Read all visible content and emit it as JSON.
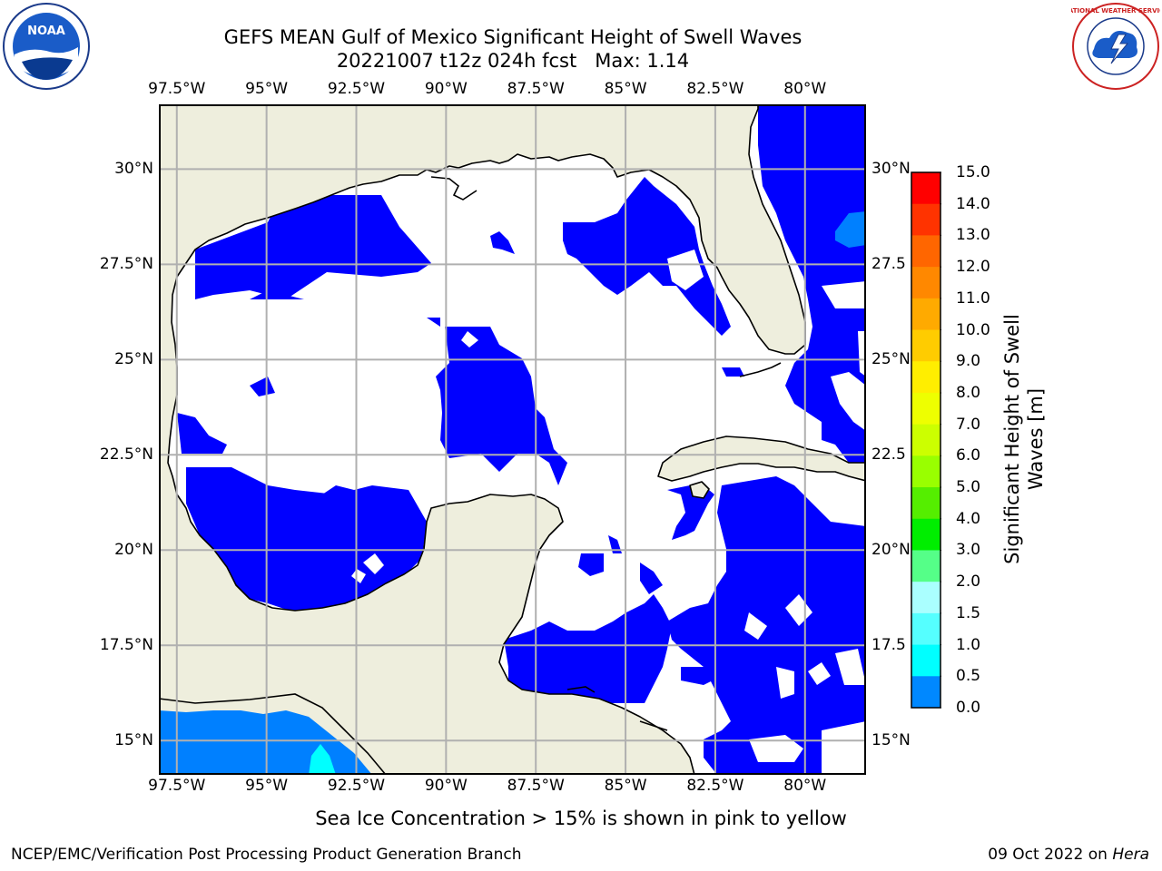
{
  "title_line1": "GEFS MEAN Gulf of Mexico Significant Height of Swell Waves",
  "title_line2": "20221007 t12z 024h fcst   Max: 1.14",
  "lon_labels": [
    "97.5°W",
    "95°W",
    "92.5°W",
    "90°W",
    "87.5°W",
    "85°W",
    "82.5°W",
    "80°W"
  ],
  "lat_labels": [
    "30°N",
    "27.5°N",
    "25°N",
    "22.5°N",
    "20°N",
    "17.5°N",
    "15°N"
  ],
  "lat_labels_right": [
    "30°N",
    "27.5",
    "25°N",
    "22.5",
    "20°N",
    "17.5",
    "15°N"
  ],
  "colorbar": {
    "ticks": [
      "15.0",
      "14.0",
      "13.0",
      "12.0",
      "11.0",
      "10.0",
      "9.0",
      "8.0",
      "7.0",
      "6.0",
      "5.0",
      "4.0",
      "3.0",
      "2.0",
      "1.5",
      "1.0",
      "0.5",
      "0.0"
    ],
    "colors": [
      "#ff0000",
      "#ff3300",
      "#ff6600",
      "#ff8800",
      "#ffaa00",
      "#ffcc00",
      "#ffee00",
      "#eeff00",
      "#ccff00",
      "#99ff00",
      "#55ee00",
      "#00ee00",
      "#55ff88",
      "#aaffff",
      "#55ffff",
      "#00ffff",
      "#0088ff",
      "#0000ff"
    ],
    "label": "Significant Height of Swell Waves [m]"
  },
  "colors": {
    "land": "#eeeedd",
    "swell_low": "#0000ff",
    "swell_mid": "#0080ff",
    "swell_cyan": "#00ffff",
    "ocean_zero": "#ffffff",
    "grid": "#b0b0b0"
  },
  "note": "Sea Ice Concentration > 15% is shown in pink to yellow",
  "footer_left": "NCEP/EMC/Verification Post Processing Product Generation Branch",
  "footer_date": "09 Oct 2022 on ",
  "footer_host": "Hera",
  "logos": {
    "left": {
      "icon": "noaa-logo",
      "text": "NOAA"
    },
    "right": {
      "icon": "nws-logo",
      "text": "NATIONAL WEATHER SERVICE"
    }
  },
  "map_extent": {
    "lon": [
      -98,
      -78.3
    ],
    "lat": [
      14.1,
      31.7
    ]
  }
}
